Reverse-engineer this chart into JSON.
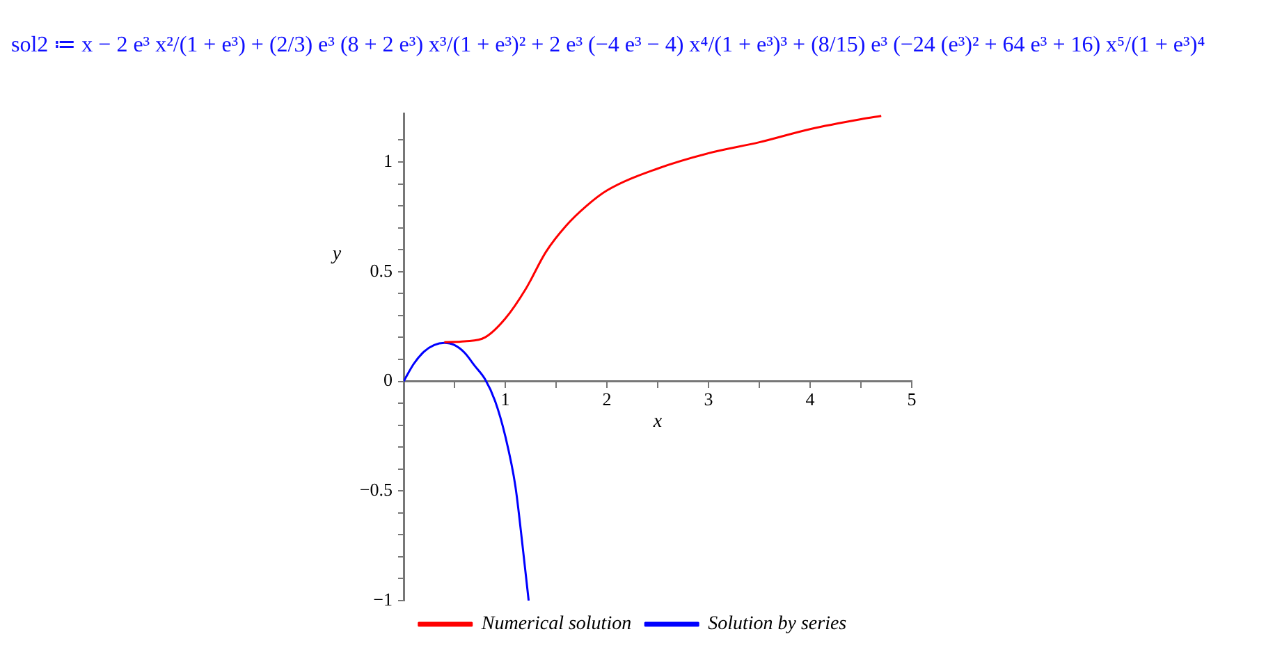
{
  "chart_data": {
    "type": "line",
    "title": "sol2 ≔ x − 2 e³ x²/(1 + e³) + (2/3) e³ (8 + 2 e³) x³/(1 + e³)² + 2 e³ (−4 e³ − 4) x⁴/(1 + e³)³ + (8/15) e³ (−24 (e³)² + 64 e³ + 16) x⁵/(1 + e³)⁴",
    "xlabel": "x",
    "ylabel": "y",
    "xlim": [
      0,
      5
    ],
    "ylim": [
      -1,
      1.22
    ],
    "xticks": [
      {
        "value": 0,
        "label": null
      },
      {
        "value": 0.5,
        "label": null
      },
      1,
      {
        "value": 1.5,
        "label": null
      },
      2,
      {
        "value": 2.5,
        "label": null
      },
      3,
      {
        "value": 3.5,
        "label": null
      },
      4,
      {
        "value": 4.5,
        "label": null
      },
      5
    ],
    "yticks": [
      {
        "value": -1,
        "label": "−1"
      },
      {
        "value": -0.9,
        "label": null
      },
      {
        "value": -0.8,
        "label": null
      },
      {
        "value": -0.7,
        "label": null
      },
      {
        "value": -0.6,
        "label": null
      },
      {
        "value": -0.5,
        "label": "−0.5"
      },
      {
        "value": -0.4,
        "label": null
      },
      {
        "value": -0.3,
        "label": null
      },
      {
        "value": -0.2,
        "label": null
      },
      {
        "value": -0.1,
        "label": null
      },
      0,
      {
        "value": 0.1,
        "label": null
      },
      {
        "value": 0.2,
        "label": null
      },
      {
        "value": 0.3,
        "label": null
      },
      {
        "value": 0.4,
        "label": null
      },
      0.5,
      {
        "value": 0.6,
        "label": null
      },
      {
        "value": 0.7,
        "label": null
      },
      {
        "value": 0.8,
        "label": null
      },
      {
        "value": 0.9,
        "label": null
      },
      1,
      {
        "value": 1.1,
        "label": null
      }
    ],
    "grid": false,
    "legend": "bottom",
    "marker": "none",
    "line_style": "solid",
    "series": [
      {
        "name": "Numerical solution",
        "color": "#ff0000",
        "x": [
          0.4,
          0.6,
          0.8,
          1.0,
          1.2,
          1.4,
          1.6,
          1.8,
          2.0,
          2.5,
          3.0,
          3.5,
          4.0,
          4.5,
          4.7
        ],
        "values": [
          0.178,
          0.182,
          0.2,
          0.286,
          0.42,
          0.59,
          0.71,
          0.8,
          0.87,
          0.97,
          1.04,
          1.09,
          1.15,
          1.195,
          1.21
        ]
      },
      {
        "name": "Solution by series",
        "color": "#0000ff",
        "x": [
          0,
          0.1,
          0.2,
          0.3,
          0.4,
          0.5,
          0.6,
          0.7,
          0.8,
          0.9,
          1.0,
          1.1,
          1.17,
          1.23
        ],
        "values": [
          0,
          0.08,
          0.135,
          0.165,
          0.175,
          0.165,
          0.13,
          0.07,
          0.01,
          -0.09,
          -0.25,
          -0.48,
          -0.75,
          -1.0
        ]
      }
    ]
  }
}
